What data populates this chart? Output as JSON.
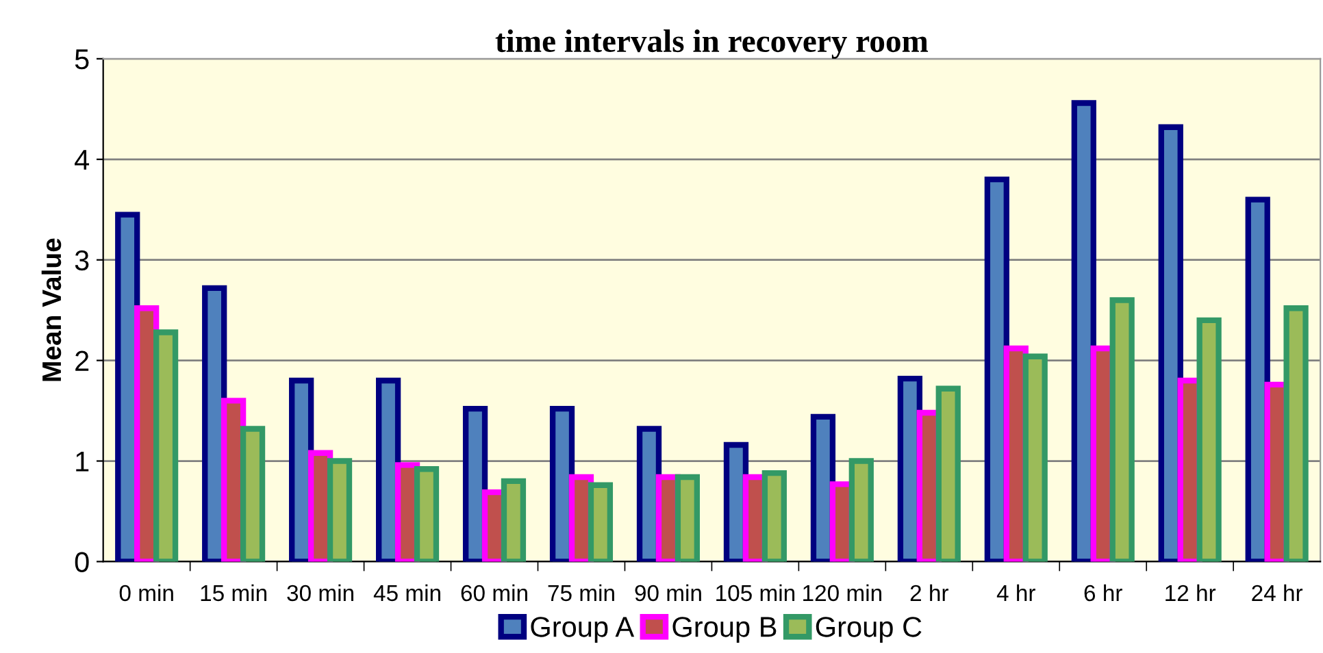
{
  "chart_data": {
    "type": "bar",
    "title": "time intervals in recovery room",
    "ylabel": "Mean Value",
    "categories": [
      "0 min",
      "15 min",
      "30 min",
      "45 min",
      "60 min",
      "75 min",
      "90 min",
      "105 min",
      "120 min",
      "2 hr",
      "4 hr",
      "6 hr",
      "12 hr",
      "24 hr"
    ],
    "series": [
      {
        "name": "Group A",
        "color": "#4f81bd",
        "values": [
          3.45,
          2.72,
          1.8,
          1.8,
          1.52,
          1.52,
          1.32,
          1.16,
          1.44,
          1.82,
          3.8,
          4.56,
          4.32,
          3.6
        ]
      },
      {
        "name": "Group B",
        "color": "#c0504d",
        "values": [
          2.52,
          1.6,
          1.08,
          0.96,
          0.69,
          0.84,
          0.84,
          0.84,
          0.77,
          1.48,
          2.12,
          2.12,
          1.8,
          1.76
        ]
      },
      {
        "name": "Group C",
        "color": "#9bbb59",
        "values": [
          2.28,
          1.32,
          1.0,
          0.92,
          0.8,
          0.76,
          0.84,
          0.88,
          1.0,
          1.72,
          2.04,
          2.6,
          2.4,
          2.52
        ]
      }
    ],
    "ylim": [
      0,
      5
    ],
    "yticks": [
      0,
      1,
      2,
      3,
      4,
      5
    ],
    "grid": "y",
    "legend": "bottom"
  }
}
